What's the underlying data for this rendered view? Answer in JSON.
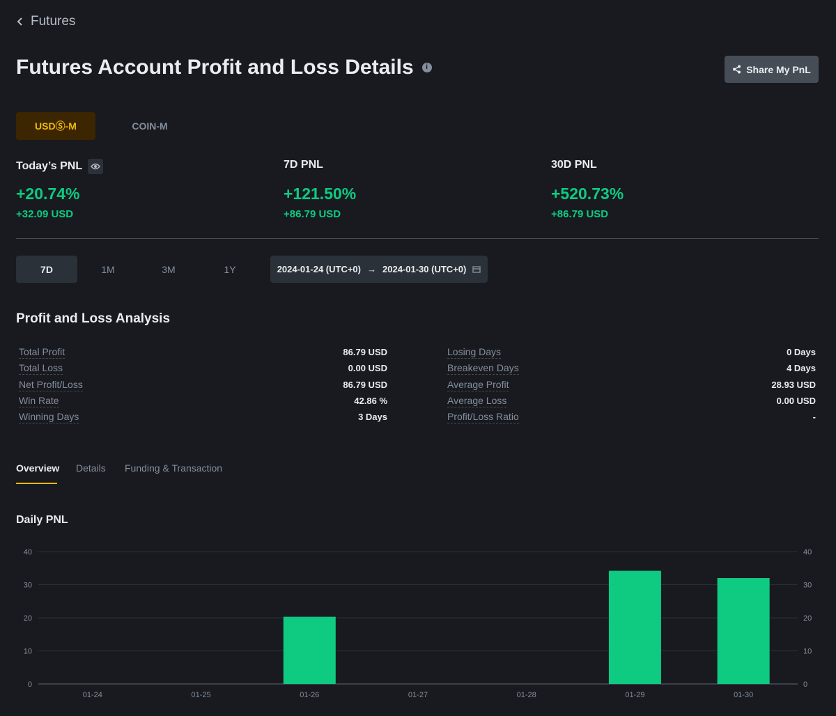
{
  "nav": {
    "back_label": "Futures"
  },
  "header": {
    "title": "Futures Account Profit and Loss Details",
    "share_label": "Share My PnL"
  },
  "market_tabs": [
    {
      "label": "USDⓈ-M",
      "active": true
    },
    {
      "label": "COIN-M",
      "active": false
    }
  ],
  "pnl_summary": [
    {
      "label": "Today’s PNL",
      "percent": "+20.74%",
      "usd": "+32.09 USD"
    },
    {
      "label": "7D PNL",
      "percent": "+121.50%",
      "usd": "+86.79 USD"
    },
    {
      "label": "30D PNL",
      "percent": "+520.73%",
      "usd": "+86.79 USD"
    }
  ],
  "range_tabs": [
    "7D",
    "1M",
    "3M",
    "1Y"
  ],
  "date_range": {
    "start": "2024-01-24 (UTC+0)",
    "arrow": "→",
    "end": "2024-01-30 (UTC+0)"
  },
  "analysis": {
    "title": "Profit and Loss Analysis",
    "left": [
      {
        "label": "Total Profit",
        "value": "86.79 USD"
      },
      {
        "label": "Total Loss",
        "value": "0.00 USD"
      },
      {
        "label": "Net Profit/Loss",
        "value": "86.79 USD"
      },
      {
        "label": "Win Rate",
        "value": "42.86 %"
      },
      {
        "label": "Winning Days",
        "value": "3 Days"
      }
    ],
    "right": [
      {
        "label": "Losing Days",
        "value": "0 Days"
      },
      {
        "label": "Breakeven Days",
        "value": "4 Days"
      },
      {
        "label": "Average Profit",
        "value": "28.93 USD"
      },
      {
        "label": "Average Loss",
        "value": "0.00 USD"
      },
      {
        "label": "Profit/Loss Ratio",
        "value": "-"
      }
    ]
  },
  "detail_tabs": [
    "Overview",
    "Details",
    "Funding & Transaction"
  ],
  "chart_data": {
    "type": "bar",
    "title": "Daily PNL",
    "categories": [
      "01-24",
      "01-25",
      "01-26",
      "01-27",
      "01-28",
      "01-29",
      "01-30"
    ],
    "values": [
      0,
      0,
      20.3,
      0,
      0,
      34.2,
      32.0
    ],
    "ylim": [
      0,
      40
    ],
    "yticks": [
      0,
      10,
      20,
      30,
      40
    ],
    "xlabel": "",
    "ylabel": "",
    "bar_color": "#0ecb81",
    "grid": true
  },
  "colors": {
    "background": "#181a20",
    "profit": "#0ecb81",
    "accent": "#f0b90b"
  }
}
